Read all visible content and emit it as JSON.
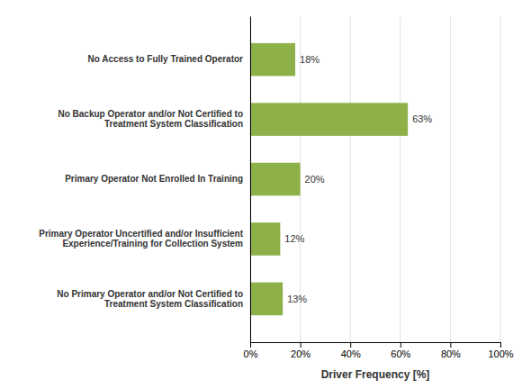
{
  "chart_data": {
    "type": "bar",
    "orientation": "horizontal",
    "categories": [
      "No Primary Operator and/or Not Certified to\nTreatment System Classification",
      "Primary Operator Uncertified and/or Insufficient\nExperience/Training for Collection System",
      "Primary Operator Not Enrolled In Training",
      "No Backup Operator and/or Not Certified to\nTreatment System Classification",
      "No Access to Fully Trained Operator"
    ],
    "values": [
      13,
      12,
      20,
      63,
      18
    ],
    "value_labels": [
      "13%",
      "12%",
      "20%",
      "63%",
      "18%"
    ],
    "data_labels": true,
    "color": "#8db048",
    "xlabel": "Driver Frequency [%]",
    "xlim": [
      0,
      100
    ],
    "xticks": [
      {
        "value": 0,
        "label": "0%"
      },
      {
        "value": 20,
        "label": "20%"
      },
      {
        "value": 40,
        "label": "40%"
      },
      {
        "value": 60,
        "label": "60%"
      },
      {
        "value": 80,
        "label": "80%"
      },
      {
        "value": 100,
        "label": "100%"
      }
    ],
    "grid": true
  }
}
